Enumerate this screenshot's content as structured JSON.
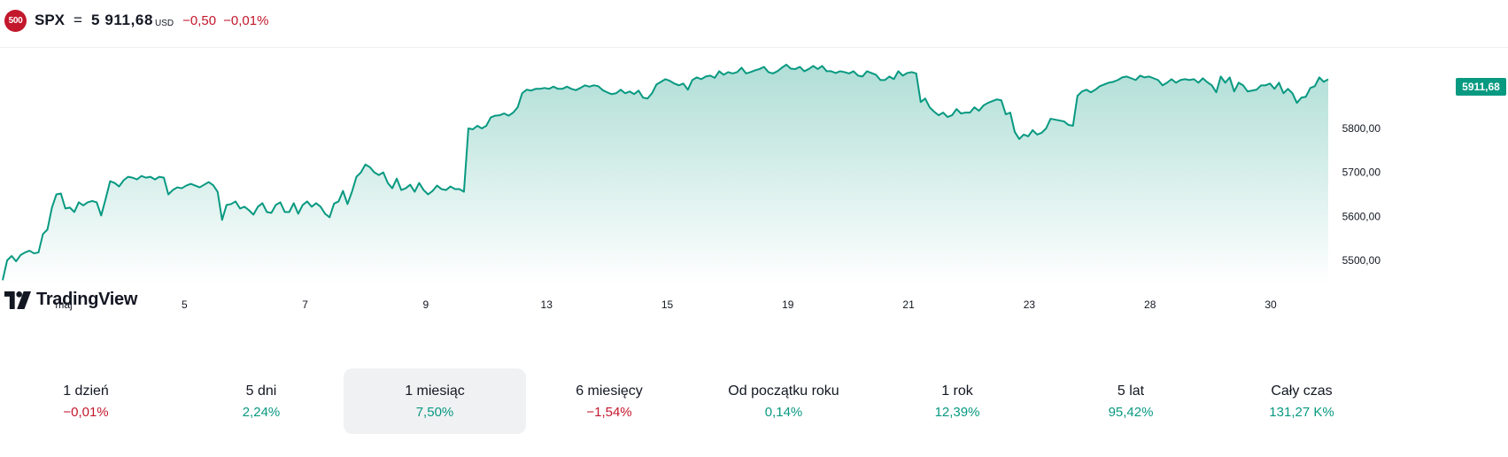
{
  "header": {
    "badge": "500",
    "symbol": "SPX",
    "separator": "=",
    "price": "5 911,68",
    "currency": "USD",
    "change": "−0,50",
    "change_pct": "−0,01%"
  },
  "watermark": {
    "text": "TradingView"
  },
  "colors": {
    "line": "#089981",
    "negative": "#c3172c",
    "positive": "#089981",
    "tag": "#089981"
  },
  "chart_data": {
    "type": "area",
    "title": "",
    "xlabel": "",
    "ylabel": "",
    "ylim": [
      5450,
      5950
    ],
    "grid": false,
    "last_price_label": "5911,68",
    "x_ticks": [
      {
        "label": "maj",
        "index": 9
      },
      {
        "label": "5",
        "index": 27
      },
      {
        "label": "7",
        "index": 45
      },
      {
        "label": "9",
        "index": 63
      },
      {
        "label": "13",
        "index": 81
      },
      {
        "label": "15",
        "index": 99
      },
      {
        "label": "19",
        "index": 117
      },
      {
        "label": "21",
        "index": 135
      },
      {
        "label": "23",
        "index": 153
      },
      {
        "label": "28",
        "index": 171
      },
      {
        "label": "30",
        "index": 189
      }
    ],
    "y_ticks": [
      {
        "label": "5500,00",
        "value": 5500
      },
      {
        "label": "5600,00",
        "value": 5600
      },
      {
        "label": "5700,00",
        "value": 5700
      },
      {
        "label": "5800,00",
        "value": 5800
      }
    ],
    "series": [
      {
        "values": [
          5455,
          5500,
          5510,
          5498,
          5512,
          5518,
          5522,
          5516,
          5518,
          5560,
          5570,
          5620,
          5650,
          5652,
          5618,
          5620,
          5610,
          5632,
          5625,
          5632,
          5635,
          5632,
          5602,
          5640,
          5680,
          5676,
          5668,
          5682,
          5690,
          5688,
          5684,
          5692,
          5688,
          5690,
          5684,
          5690,
          5688,
          5650,
          5660,
          5666,
          5664,
          5670,
          5674,
          5670,
          5666,
          5672,
          5678,
          5671,
          5656,
          5592,
          5626,
          5628,
          5634,
          5618,
          5622,
          5614,
          5604,
          5622,
          5630,
          5610,
          5608,
          5626,
          5632,
          5610,
          5610,
          5630,
          5606,
          5626,
          5634,
          5622,
          5630,
          5622,
          5606,
          5598,
          5629,
          5634,
          5658,
          5628,
          5656,
          5690,
          5700,
          5718,
          5712,
          5700,
          5694,
          5700,
          5676,
          5664,
          5686,
          5660,
          5664,
          5672,
          5656,
          5676,
          5660,
          5650,
          5658,
          5670,
          5662,
          5660,
          5668,
          5662,
          5662,
          5656,
          5800,
          5798,
          5806,
          5800,
          5806,
          5825,
          5829,
          5830,
          5834,
          5829,
          5836,
          5848,
          5880,
          5888,
          5886,
          5890,
          5890,
          5892,
          5890,
          5895,
          5890,
          5890,
          5895,
          5890,
          5887,
          5892,
          5898,
          5895,
          5898,
          5896,
          5887,
          5882,
          5878,
          5880,
          5888,
          5880,
          5884,
          5878,
          5886,
          5870,
          5868,
          5880,
          5900,
          5906,
          5912,
          5908,
          5902,
          5898,
          5902,
          5888,
          5910,
          5916,
          5912,
          5918,
          5920,
          5915,
          5930,
          5922,
          5928,
          5925,
          5928,
          5938,
          5925,
          5928,
          5932,
          5935,
          5940,
          5928,
          5925,
          5930,
          5938,
          5945,
          5936,
          5935,
          5940,
          5930,
          5935,
          5942,
          5935,
          5942,
          5930,
          5930,
          5926,
          5930,
          5928,
          5925,
          5930,
          5920,
          5918,
          5930,
          5926,
          5922,
          5910,
          5910,
          5918,
          5912,
          5930,
          5920,
          5926,
          5928,
          5925,
          5860,
          5868,
          5848,
          5838,
          5830,
          5836,
          5826,
          5830,
          5844,
          5834,
          5836,
          5836,
          5848,
          5840,
          5852,
          5858,
          5862,
          5866,
          5864,
          5832,
          5836,
          5792,
          5776,
          5786,
          5782,
          5796,
          5786,
          5790,
          5800,
          5822,
          5820,
          5818,
          5816,
          5808,
          5806,
          5874,
          5884,
          5888,
          5882,
          5888,
          5896,
          5900,
          5904,
          5906,
          5910,
          5916,
          5918,
          5914,
          5910,
          5920,
          5916,
          5918,
          5914,
          5910,
          5898,
          5904,
          5912,
          5904,
          5910,
          5912,
          5910,
          5912,
          5904,
          5914,
          5905,
          5898,
          5882,
          5918,
          5904,
          5916,
          5884,
          5904,
          5898,
          5884,
          5886,
          5888,
          5898,
          5898,
          5902,
          5890,
          5904,
          5880,
          5890,
          5880,
          5858,
          5870,
          5872,
          5892,
          5896,
          5916,
          5906,
          5911.68
        ]
      }
    ]
  },
  "periods": [
    {
      "label": "1 dzień",
      "value": "−0,01%",
      "sign": "neg",
      "active": false
    },
    {
      "label": "5 dni",
      "value": "2,24%",
      "sign": "pos",
      "active": false
    },
    {
      "label": "1 miesiąc",
      "value": "7,50%",
      "sign": "pos",
      "active": true
    },
    {
      "label": "6 miesięcy",
      "value": "−1,54%",
      "sign": "neg",
      "active": false
    },
    {
      "label": "Od początku roku",
      "value": "0,14%",
      "sign": "pos",
      "active": false
    },
    {
      "label": "1 rok",
      "value": "12,39%",
      "sign": "pos",
      "active": false
    },
    {
      "label": "5 lat",
      "value": "95,42%",
      "sign": "pos",
      "active": false
    },
    {
      "label": "Cały czas",
      "value": "131,27 K%",
      "sign": "pos",
      "active": false
    }
  ]
}
